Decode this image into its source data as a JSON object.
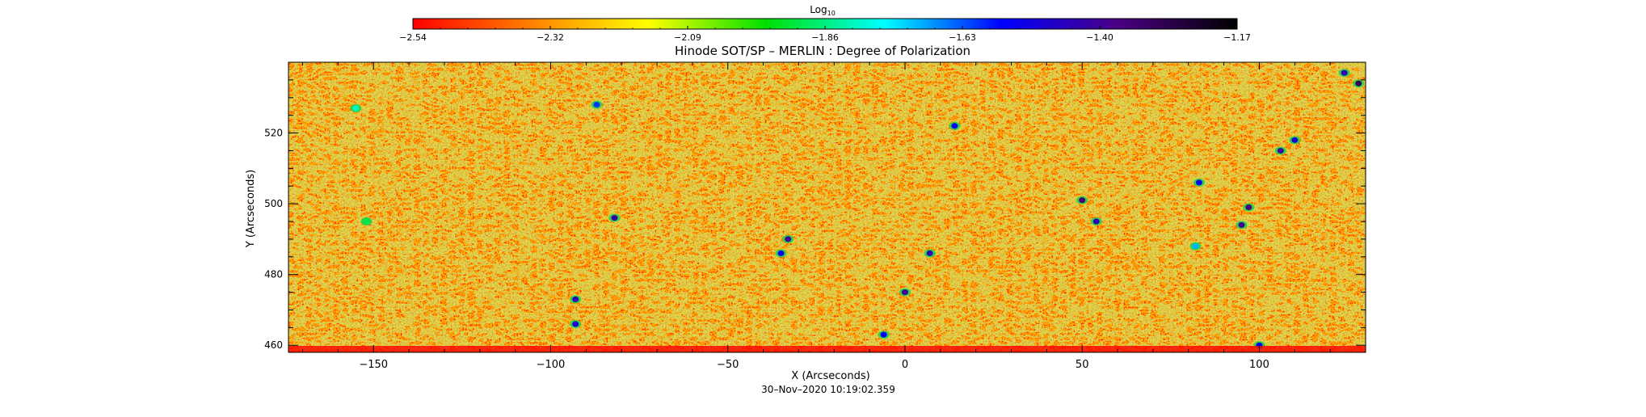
{
  "chart_data": {
    "type": "heatmap",
    "title": "Hinode SOT/SP – MERLIN : Degree of Polarization",
    "timestamp": "30–Nov–2020 10:19:02.359",
    "xlabel": "X (Arcseconds)",
    "ylabel": "Y (Arcseconds)",
    "xlim": [
      -174,
      130
    ],
    "ylim": [
      458,
      540
    ],
    "x_ticks": [
      "−150",
      "−100",
      "−50",
      "0",
      "50",
      "100"
    ],
    "x_tick_values": [
      -150,
      -100,
      -50,
      0,
      50,
      100
    ],
    "y_ticks": [
      "460",
      "480",
      "500",
      "520"
    ],
    "y_tick_values": [
      460,
      480,
      500,
      520
    ],
    "colorbar": {
      "label_base": "Log",
      "label_sub": "10",
      "range": [
        -2.54,
        -1.17
      ],
      "tick_labels": [
        "−2.54",
        "−2.32",
        "−2.09",
        "−1.86",
        "−1.63",
        "−1.40",
        "−1.17"
      ],
      "colormap": [
        "#ff0000",
        "#ff8000",
        "#ffff00",
        "#00e000",
        "#00ffff",
        "#0000ff",
        "#4b0082",
        "#000000"
      ]
    },
    "typical_value_range": [
      -2.54,
      -2.09
    ],
    "features": [
      {
        "x": -152,
        "y": 495,
        "v": -1.9
      },
      {
        "x": -82,
        "y": 496,
        "v": -1.42
      },
      {
        "x": -33,
        "y": 490,
        "v": -1.4
      },
      {
        "x": -35,
        "y": 486,
        "v": -1.55
      },
      {
        "x": 7,
        "y": 486,
        "v": -1.45
      },
      {
        "x": 0,
        "y": 475,
        "v": -1.4
      },
      {
        "x": -93,
        "y": 473,
        "v": -1.45
      },
      {
        "x": -93,
        "y": 466,
        "v": -1.5
      },
      {
        "x": -6,
        "y": 463,
        "v": -1.55
      },
      {
        "x": 50,
        "y": 501,
        "v": -1.35
      },
      {
        "x": 54,
        "y": 495,
        "v": -1.45
      },
      {
        "x": 97,
        "y": 499,
        "v": -1.35
      },
      {
        "x": 95,
        "y": 494,
        "v": -1.4
      },
      {
        "x": 106,
        "y": 515,
        "v": -1.4
      },
      {
        "x": 110,
        "y": 518,
        "v": -1.5
      },
      {
        "x": 83,
        "y": 506,
        "v": -1.55
      },
      {
        "x": 14,
        "y": 522,
        "v": -1.55
      },
      {
        "x": 128,
        "y": 534,
        "v": -1.3
      },
      {
        "x": 124,
        "y": 537,
        "v": -1.45
      },
      {
        "x": -155,
        "y": 527,
        "v": -1.8
      },
      {
        "x": -87,
        "y": 528,
        "v": -1.6
      },
      {
        "x": 100,
        "y": 460,
        "v": -1.55
      },
      {
        "x": 82,
        "y": 488,
        "v": -1.7
      }
    ]
  }
}
